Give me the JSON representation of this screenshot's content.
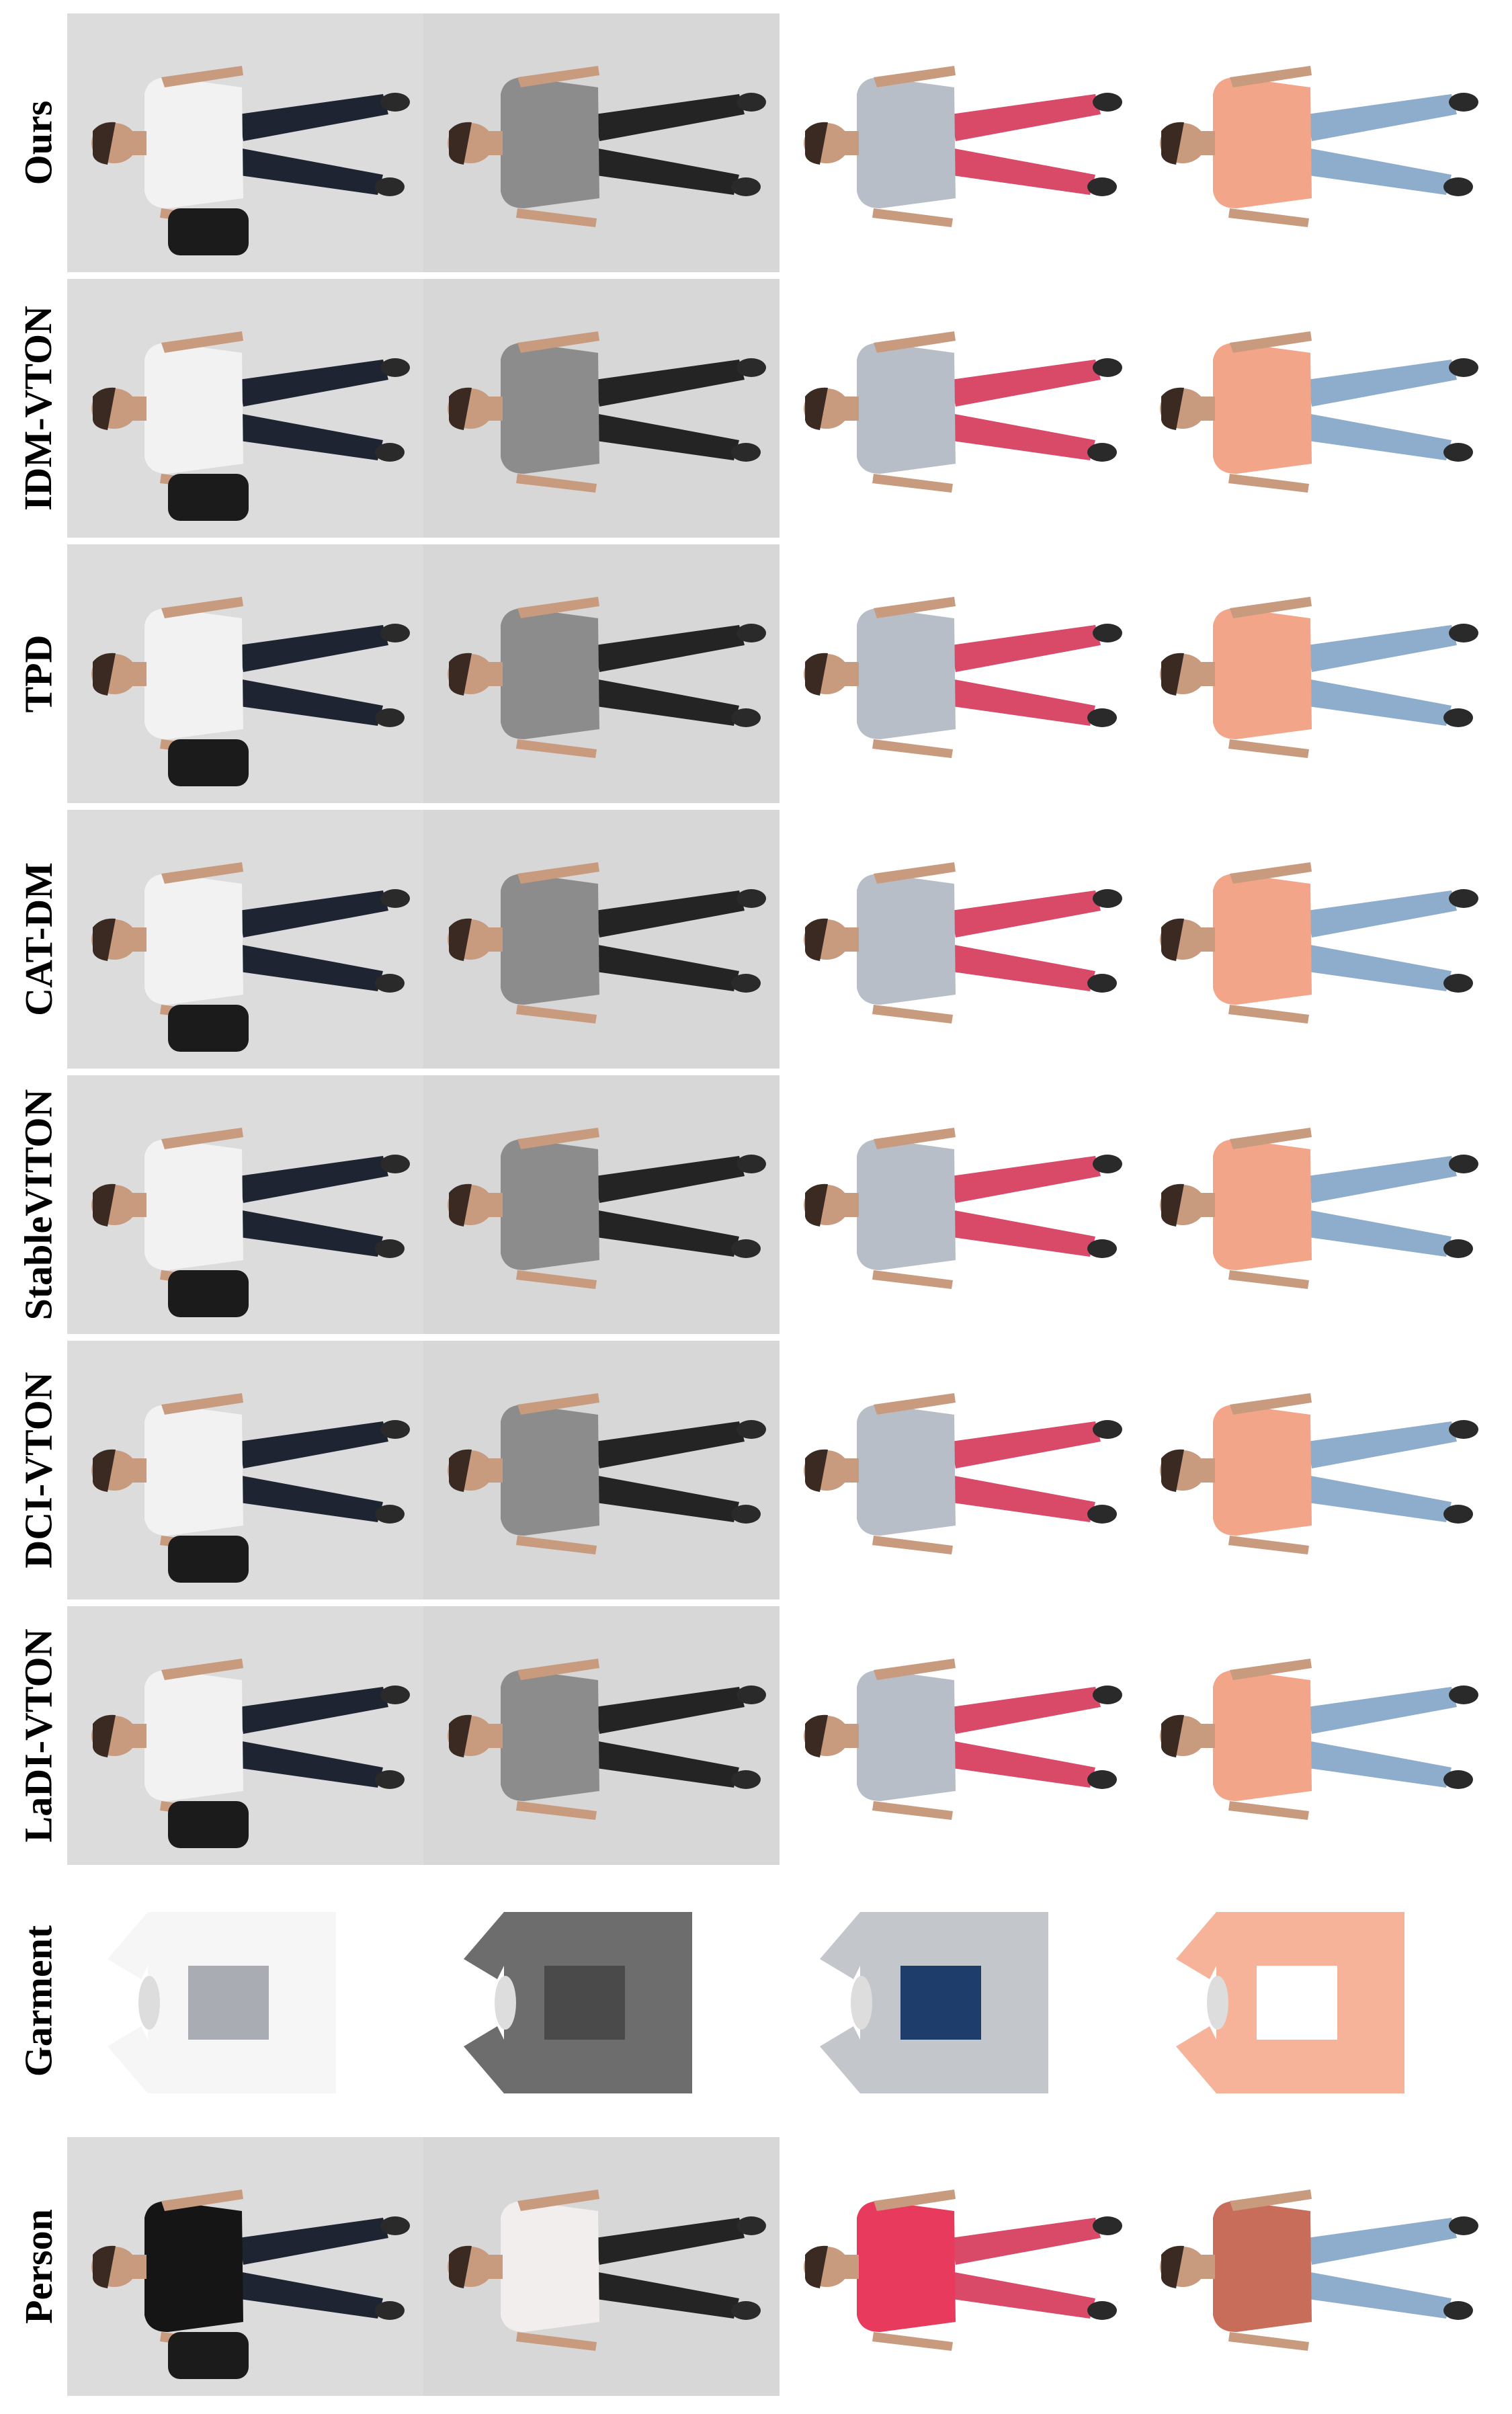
{
  "figure": {
    "row_labels": [
      "Ours",
      "IDM-VTON",
      "TPD",
      "CAT-DM",
      "StableVITON",
      "DCI-VTON",
      "LaDI-VTON",
      "Garment",
      "Person"
    ],
    "samples": [
      {
        "background": "#dcdcdc",
        "top_color": "#f2f2f2",
        "bottom_color": "#1f2433",
        "accessory": "backpack"
      },
      {
        "background": "#d7d7d7",
        "top_color": "#8c8c8c",
        "bottom_color": "#242424",
        "accessory": "none"
      },
      {
        "background": "#ffffff",
        "top_color": "#b8bec8",
        "bottom_color": "#d94a68",
        "accessory": "none"
      },
      {
        "background": "#ffffff",
        "top_color": "#f2a589",
        "bottom_color": "#8eaccc",
        "accessory": "none"
      }
    ],
    "garment_colors": [
      "#f6f6f6",
      "#6d6d6d",
      "#c3c7cc",
      "#f7b39a"
    ],
    "garment_accents": [
      "#a9adb3",
      "#4a4a4a",
      "#1f3d6b",
      "#ffffff"
    ],
    "person_top_colors": [
      "#151515",
      "#f3eeee",
      "#e83a5c",
      "#c86d5a"
    ]
  }
}
